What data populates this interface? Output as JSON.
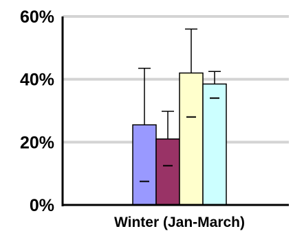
{
  "chart_data": {
    "type": "bar",
    "title": "",
    "xlabel": "",
    "ylabel": "",
    "categories": [
      "Winter (Jan-March)"
    ],
    "ylim": [
      0,
      60
    ],
    "yticks": [
      0,
      20,
      40,
      60
    ],
    "ytick_labels": [
      "0%",
      "20%",
      "40%",
      "60%"
    ],
    "grid": true,
    "legend": "none",
    "series": [
      {
        "values": [
          25.5
        ],
        "error_upper": [
          43.5
        ],
        "inner_mark": [
          7.5
        ],
        "color": "#9999ff"
      },
      {
        "values": [
          21
        ],
        "error_upper": [
          29.8
        ],
        "inner_mark": [
          12.5
        ],
        "color": "#993366"
      },
      {
        "values": [
          42
        ],
        "error_upper": [
          56
        ],
        "inner_mark": [
          28
        ],
        "color": "#ffffcc"
      },
      {
        "values": [
          38.5
        ],
        "error_upper": [
          42.5
        ],
        "inner_mark": [
          34
        ],
        "color": "#ccffff"
      }
    ]
  }
}
